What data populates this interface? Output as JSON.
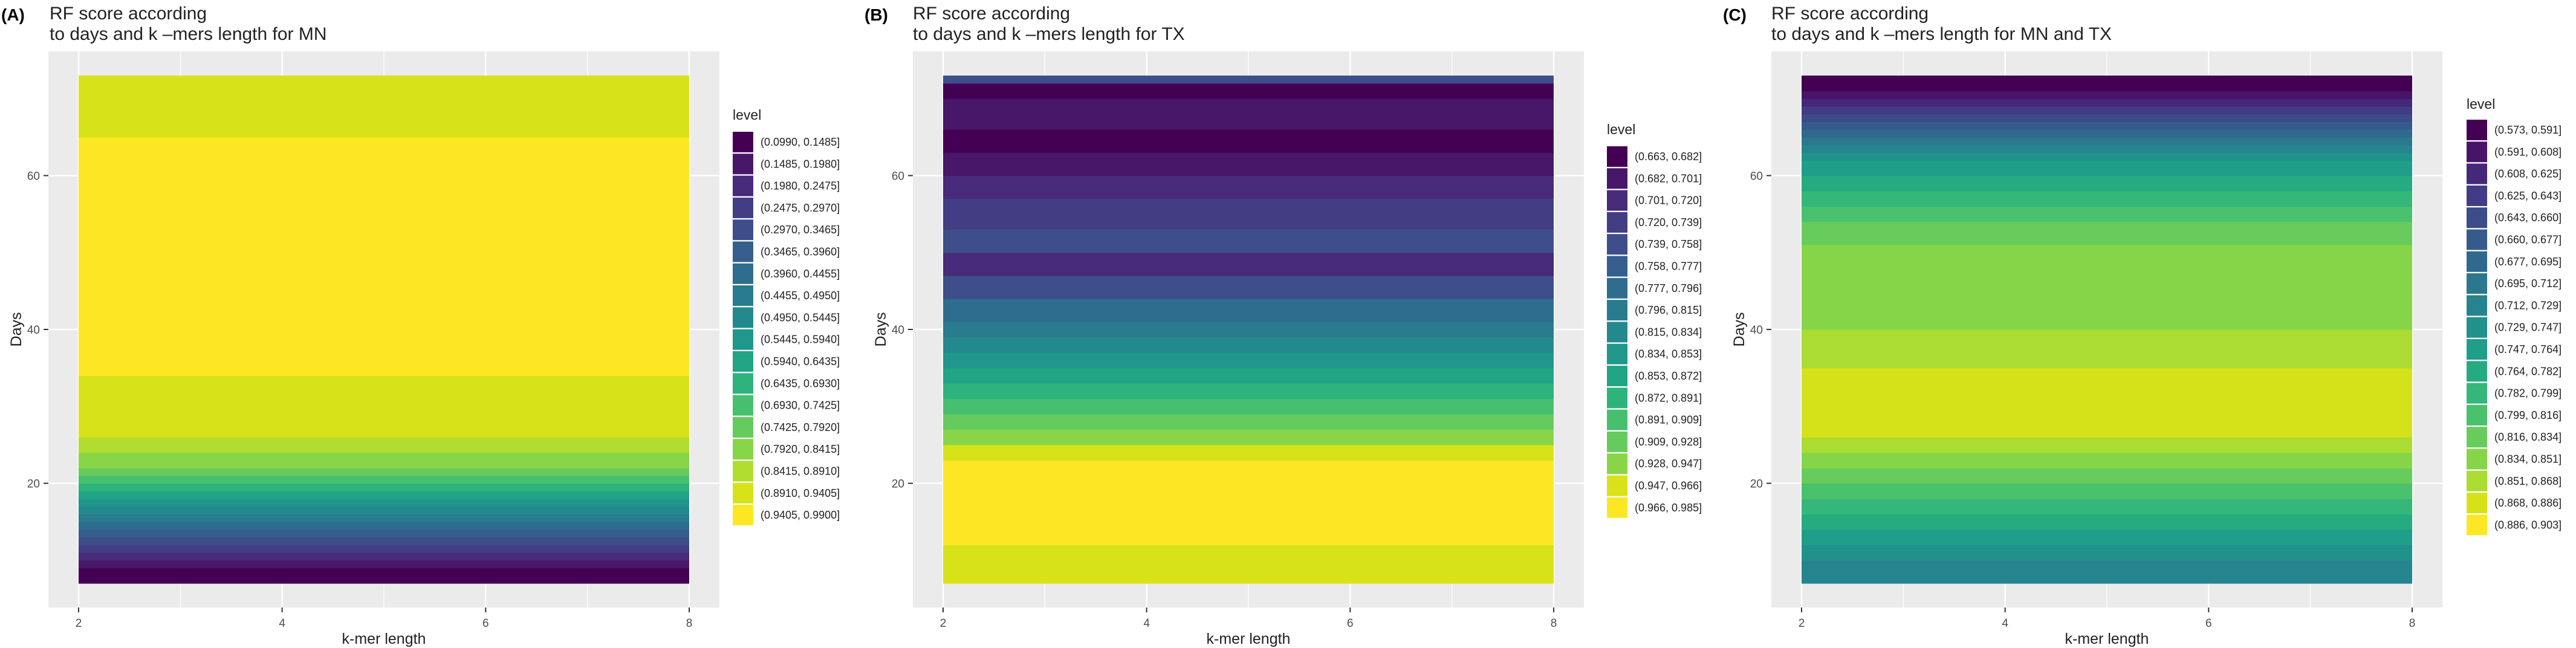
{
  "chart_data": [
    {
      "type": "heatmap",
      "panel_label": "(A)",
      "title_lines": [
        "RF score according",
        "to days and k –mers length for MN"
      ],
      "xlabel": "k-mer length",
      "ylabel": "Days",
      "xlim": [
        2,
        8
      ],
      "ylim": [
        7,
        73
      ],
      "x_ticks": [
        2,
        4,
        6,
        8
      ],
      "y_ticks": [
        20,
        40,
        60
      ],
      "legend_title": "level",
      "legend_labels": [
        "(0.0990, 0.1485]",
        "(0.1485, 0.1980]",
        "(0.1980, 0.2475]",
        "(0.2475, 0.2970]",
        "(0.2970, 0.3465]",
        "(0.3465, 0.3960]",
        "(0.3960, 0.4455]",
        "(0.4455, 0.4950]",
        "(0.4950, 0.5445]",
        "(0.5445, 0.5940]",
        "(0.5940, 0.6435]",
        "(0.6435, 0.6930]",
        "(0.6930, 0.7425]",
        "(0.7425, 0.7920]",
        "(0.7920, 0.8415]",
        "(0.8415, 0.8910]",
        "(0.8910, 0.9405]",
        "(0.9405, 0.9900]"
      ],
      "legend_colors": [
        "#440154",
        "#481769",
        "#472a7a",
        "#433d84",
        "#3d4e8a",
        "#355e8d",
        "#2e6d8e",
        "#297b8e",
        "#23898e",
        "#1f978b",
        "#21a585",
        "#2eb37c",
        "#46c06f",
        "#65cb5e",
        "#89d548",
        "#b0dd2f",
        "#d8e219",
        "#fde725"
      ],
      "bands": [
        {
          "level": 0,
          "y": [
            7,
            9
          ]
        },
        {
          "level": 1,
          "y": [
            9,
            10
          ]
        },
        {
          "level": 2,
          "y": [
            10,
            11
          ]
        },
        {
          "level": 3,
          "y": [
            11,
            12
          ]
        },
        {
          "level": 4,
          "y": [
            12,
            13
          ]
        },
        {
          "level": 5,
          "y": [
            13,
            14
          ]
        },
        {
          "level": 6,
          "y": [
            14,
            15
          ]
        },
        {
          "level": 7,
          "y": [
            15,
            16
          ]
        },
        {
          "level": 8,
          "y": [
            16,
            17
          ]
        },
        {
          "level": 9,
          "y": [
            17,
            18
          ]
        },
        {
          "level": 10,
          "y": [
            18,
            19
          ]
        },
        {
          "level": 11,
          "y": [
            19,
            20
          ]
        },
        {
          "level": 12,
          "y": [
            20,
            21
          ]
        },
        {
          "level": 13,
          "y": [
            21,
            22
          ]
        },
        {
          "level": 14,
          "y": [
            22,
            24
          ]
        },
        {
          "level": 15,
          "y": [
            24,
            26
          ]
        },
        {
          "level": 16,
          "y": [
            26,
            34
          ]
        },
        {
          "level": 17,
          "y": [
            34,
            65
          ]
        },
        {
          "level": 16,
          "y": [
            65,
            73
          ]
        }
      ]
    },
    {
      "type": "heatmap",
      "panel_label": "(B)",
      "title_lines": [
        "RF score according",
        "to days and k –mers length for TX"
      ],
      "xlabel": "k-mer length",
      "ylabel": "Days",
      "xlim": [
        2,
        8
      ],
      "ylim": [
        7,
        73
      ],
      "x_ticks": [
        2,
        4,
        6,
        8
      ],
      "y_ticks": [
        20,
        40,
        60
      ],
      "legend_title": "level",
      "legend_labels": [
        "(0.663, 0.682]",
        "(0.682, 0.701]",
        "(0.701, 0.720]",
        "(0.720, 0.739]",
        "(0.739, 0.758]",
        "(0.758, 0.777]",
        "(0.777, 0.796]",
        "(0.796, 0.815]",
        "(0.815, 0.834]",
        "(0.834, 0.853]",
        "(0.853, 0.872]",
        "(0.872, 0.891]",
        "(0.891, 0.909]",
        "(0.909, 0.928]",
        "(0.928, 0.947]",
        "(0.947, 0.966]",
        "(0.966, 0.985]"
      ],
      "legend_colors": [
        "#440154",
        "#481769",
        "#472a7a",
        "#433d84",
        "#3d4e8a",
        "#355e8d",
        "#2e6d8e",
        "#297b8e",
        "#23898e",
        "#1f978b",
        "#21a585",
        "#2eb37c",
        "#46c06f",
        "#65cb5e",
        "#89d548",
        "#d8e219",
        "#fde725"
      ],
      "bands": [
        {
          "level": 15,
          "y": [
            7,
            12
          ]
        },
        {
          "level": 16,
          "y": [
            12,
            23
          ]
        },
        {
          "level": 15,
          "y": [
            23,
            25
          ]
        },
        {
          "level": 14,
          "y": [
            25,
            27
          ]
        },
        {
          "level": 13,
          "y": [
            27,
            29
          ]
        },
        {
          "level": 12,
          "y": [
            29,
            31
          ]
        },
        {
          "level": 11,
          "y": [
            31,
            33
          ]
        },
        {
          "level": 10,
          "y": [
            33,
            35
          ]
        },
        {
          "level": 9,
          "y": [
            35,
            37
          ]
        },
        {
          "level": 8,
          "y": [
            37,
            39
          ]
        },
        {
          "level": 7,
          "y": [
            39,
            41
          ]
        },
        {
          "level": 6,
          "y": [
            41,
            44
          ]
        },
        {
          "level": 4,
          "y": [
            44,
            47
          ]
        },
        {
          "level": 2,
          "y": [
            47,
            50
          ]
        },
        {
          "level": 4,
          "y": [
            50,
            53
          ]
        },
        {
          "level": 3,
          "y": [
            53,
            57
          ]
        },
        {
          "level": 2,
          "y": [
            57,
            60
          ]
        },
        {
          "level": 1,
          "y": [
            60,
            63
          ]
        },
        {
          "level": 0,
          "y": [
            63,
            66
          ]
        },
        {
          "level": 1,
          "y": [
            66,
            70
          ]
        },
        {
          "level": 0,
          "y": [
            70,
            72
          ]
        },
        {
          "level": 4,
          "y": [
            72,
            73
          ]
        }
      ]
    },
    {
      "type": "heatmap",
      "panel_label": "(C)",
      "title_lines": [
        "RF score according",
        "to days and k –mers length for MN and TX"
      ],
      "xlabel": "k-mer length",
      "ylabel": "Days",
      "xlim": [
        2,
        8
      ],
      "ylim": [
        7,
        73
      ],
      "x_ticks": [
        2,
        4,
        6,
        8
      ],
      "y_ticks": [
        20,
        40,
        60
      ],
      "legend_title": "level",
      "legend_labels": [
        "(0.573, 0.591]",
        "(0.591, 0.608]",
        "(0.608, 0.625]",
        "(0.625, 0.643]",
        "(0.643, 0.660]",
        "(0.660, 0.677]",
        "(0.677, 0.695]",
        "(0.695, 0.712]",
        "(0.712, 0.729]",
        "(0.729, 0.747]",
        "(0.747, 0.764]",
        "(0.764, 0.782]",
        "(0.782, 0.799]",
        "(0.799, 0.816]",
        "(0.816, 0.834]",
        "(0.834, 0.851]",
        "(0.851, 0.868]",
        "(0.868, 0.886]",
        "(0.886, 0.903]"
      ],
      "legend_colors": [
        "#440154",
        "#48146a",
        "#46287a",
        "#423b85",
        "#3c4b89",
        "#355b8d",
        "#2f698e",
        "#2a778e",
        "#25848e",
        "#21918c",
        "#1f9e89",
        "#26ab81",
        "#35b779",
        "#4ac16d",
        "#67cc5c",
        "#86d549",
        "#aadc32",
        "#d5e21a",
        "#fde725"
      ],
      "bands": [
        {
          "level": 8,
          "y": [
            7,
            10
          ]
        },
        {
          "level": 9,
          "y": [
            10,
            12
          ]
        },
        {
          "level": 10,
          "y": [
            12,
            14
          ]
        },
        {
          "level": 11,
          "y": [
            14,
            16
          ]
        },
        {
          "level": 12,
          "y": [
            16,
            18
          ]
        },
        {
          "level": 13,
          "y": [
            18,
            20
          ]
        },
        {
          "level": 14,
          "y": [
            20,
            22
          ]
        },
        {
          "level": 15,
          "y": [
            22,
            24
          ]
        },
        {
          "level": 16,
          "y": [
            24,
            26
          ]
        },
        {
          "level": 17,
          "y": [
            26,
            35
          ]
        },
        {
          "level": 16,
          "y": [
            35,
            40
          ]
        },
        {
          "level": 15,
          "y": [
            40,
            51
          ]
        },
        {
          "level": 14,
          "y": [
            51,
            54
          ]
        },
        {
          "level": 13,
          "y": [
            54,
            56
          ]
        },
        {
          "level": 12,
          "y": [
            56,
            58
          ]
        },
        {
          "level": 11,
          "y": [
            58,
            60
          ]
        },
        {
          "level": 10,
          "y": [
            60,
            62
          ]
        },
        {
          "level": 9,
          "y": [
            62,
            63
          ]
        },
        {
          "level": 8,
          "y": [
            63,
            64
          ]
        },
        {
          "level": 7,
          "y": [
            64,
            65
          ]
        },
        {
          "level": 6,
          "y": [
            65,
            66
          ]
        },
        {
          "level": 5,
          "y": [
            66,
            67
          ]
        },
        {
          "level": 4,
          "y": [
            67,
            68
          ]
        },
        {
          "level": 3,
          "y": [
            68,
            69
          ]
        },
        {
          "level": 2,
          "y": [
            69,
            70
          ]
        },
        {
          "level": 1,
          "y": [
            70,
            71
          ]
        },
        {
          "level": 0,
          "y": [
            71,
            73
          ]
        }
      ]
    }
  ]
}
